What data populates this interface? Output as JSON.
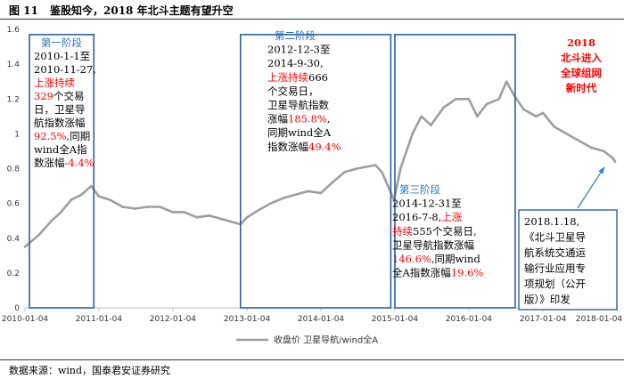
{
  "figure": {
    "number": "图 11",
    "title": "鉴股知今，2018 年北斗主题有望升空",
    "source": "数据来源：wind，国泰君安证券研究"
  },
  "chart_data": {
    "type": "line",
    "title": "",
    "xlabel": "",
    "ylabel": "",
    "ylim": [
      0,
      1.6
    ],
    "yticks": [
      "0",
      "0.2",
      "0.4",
      "0.6",
      "0.8",
      "1",
      "1.2",
      "1.4",
      "1.6"
    ],
    "xticks": [
      "2010-01-04",
      "2011-01-04",
      "2012-01-04",
      "2013-01-04",
      "2014-01-04",
      "2015-01-04",
      "2016-01-04",
      "2017-01-04",
      "2018-01-04"
    ],
    "grid": false,
    "legend": {
      "position": "bottom",
      "entries": [
        "收盘价 卫星导航/wind全A"
      ]
    },
    "series": [
      {
        "name": "收盘价 卫星导航/wind全A",
        "color": "#9e9e9e",
        "x": [
          "2010-01-04",
          "2010-03-15",
          "2010-05-15",
          "2010-07-01",
          "2010-08-20",
          "2010-10-10",
          "2010-11-27",
          "2011-01-04",
          "2011-03-01",
          "2011-05-01",
          "2011-07-01",
          "2011-09-01",
          "2011-11-01",
          "2012-01-04",
          "2012-03-01",
          "2012-05-01",
          "2012-07-01",
          "2012-09-01",
          "2012-12-03",
          "2013-01-04",
          "2013-03-01",
          "2013-05-01",
          "2013-07-01",
          "2013-09-01",
          "2013-11-01",
          "2014-01-04",
          "2014-03-01",
          "2014-05-01",
          "2014-07-01",
          "2014-09-30",
          "2014-11-01",
          "2014-12-31",
          "2015-02-01",
          "2015-04-01",
          "2015-05-15",
          "2015-07-01",
          "2015-09-01",
          "2015-11-01",
          "2016-01-04",
          "2016-02-15",
          "2016-04-01",
          "2016-06-01",
          "2016-07-08",
          "2016-08-15",
          "2016-10-01",
          "2016-12-01",
          "2017-01-04",
          "2017-03-01",
          "2017-05-01",
          "2017-07-01",
          "2017-09-01",
          "2017-11-01",
          "2017-12-15",
          "2018-01-18"
        ],
        "values": [
          0.35,
          0.42,
          0.5,
          0.55,
          0.62,
          0.65,
          0.7,
          0.64,
          0.62,
          0.58,
          0.57,
          0.58,
          0.58,
          0.55,
          0.55,
          0.52,
          0.53,
          0.51,
          0.48,
          0.52,
          0.56,
          0.6,
          0.63,
          0.65,
          0.67,
          0.66,
          0.72,
          0.78,
          0.8,
          0.82,
          0.78,
          0.62,
          0.8,
          1.0,
          1.1,
          1.05,
          1.15,
          1.2,
          1.2,
          1.1,
          1.17,
          1.2,
          1.3,
          1.22,
          1.14,
          1.1,
          1.12,
          1.04,
          1.0,
          0.96,
          0.92,
          0.9,
          0.86,
          0.84
        ]
      }
    ]
  },
  "annotations": {
    "phase1": {
      "heading": "第一阶段",
      "lines": [
        [
          "2010-1-1至"
        ],
        [
          "2010-11-27,"
        ],
        [
          "上涨持续"
        ],
        [
          "329",
          "个交易"
        ],
        [
          "日，卫星导"
        ],
        [
          "航指数涨幅"
        ],
        [
          "92.5%",
          ",同期"
        ],
        [
          "wind全A指"
        ],
        [
          "数涨幅",
          "-4.4%"
        ]
      ]
    },
    "phase2": {
      "heading": "第二阶段",
      "lines": [
        [
          "2012-12-3至"
        ],
        [
          "2014-9-30,"
        ],
        [
          "上涨持续666"
        ],
        [
          "个交易日，"
        ],
        [
          "卫星导航指数"
        ],
        [
          "涨幅",
          "185.8%",
          ","
        ],
        [
          "同期wind全A"
        ],
        [
          "指数涨幅",
          "49.4%"
        ]
      ]
    },
    "phase3": {
      "heading": "第三阶段",
      "lines": [
        [
          "2014-12-31至"
        ],
        [
          "2016-7-8,",
          "上涨"
        ],
        [
          "持续555",
          "个交易日,"
        ],
        [
          "卫星导航指数涨幅"
        ],
        [
          "146.6%",
          ",同期wind"
        ],
        [
          "全A指数涨幅",
          "19.6%"
        ]
      ]
    },
    "beidou": [
      "2018",
      "北斗进入",
      "全球组网",
      "新时代"
    ],
    "policy": [
      "2018.1.18,",
      "《北斗卫星导",
      "航系统交通运",
      "输行业应用专",
      "项规划（公开",
      "版）》印发"
    ]
  },
  "colors": {
    "box": "#2e5fa1",
    "highlight": "#ff0000",
    "heading": "#2e75b6",
    "arrow": "#2f7fd1"
  }
}
